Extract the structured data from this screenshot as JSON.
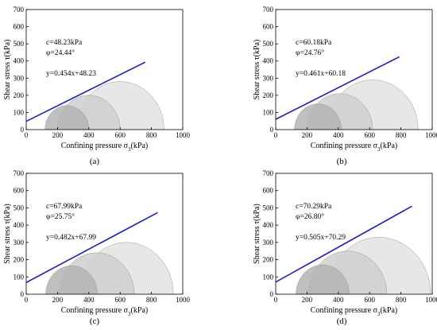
{
  "colors": {
    "envelope_line": "#1a1acc",
    "circle_light_fill": "#e3e3e3",
    "circle_mid_fill": "#cfcfcf",
    "circle_dark_fill": "#b4b4b4",
    "circle_stroke": "#9a9a9a",
    "axis": "#000000"
  },
  "chart_data": [
    {
      "type": "scatter",
      "label": "(a)",
      "xlabel_pre": "Confining pressure σ",
      "xlabel_sub": "3",
      "xlabel_post": "(kPa)",
      "ylabel": "Shear stress τ(kPa)",
      "xlim": [
        0,
        1000
      ],
      "ylim": [
        0,
        700
      ],
      "xticks": [
        0,
        200,
        400,
        600,
        800,
        1000
      ],
      "yticks": [
        0,
        100,
        200,
        300,
        400,
        500,
        600,
        700
      ],
      "mohr_circles": [
        {
          "center": 600,
          "radius": 280
        },
        {
          "center": 400,
          "radius": 200
        },
        {
          "center": 260,
          "radius": 140
        }
      ],
      "fit_line": {
        "slope": 0.454,
        "intercept": 48.23,
        "x": [
          0,
          760
        ]
      },
      "annotations": {
        "cohesion": "c=48.23kPa",
        "friction": "φ=24.44°",
        "equation": "y=0.454x+48.23"
      }
    },
    {
      "type": "scatter",
      "label": "(b)",
      "xlabel_pre": "Confining pressure σ",
      "xlabel_sub": "3",
      "xlabel_post": "(kPa)",
      "ylabel": "Shear stress τ(kPa)",
      "xlim": [
        0,
        1000
      ],
      "ylim": [
        0,
        700
      ],
      "xticks": [
        0,
        200,
        400,
        600,
        800,
        1000
      ],
      "yticks": [
        0,
        100,
        200,
        300,
        400,
        500,
        600,
        700
      ],
      "mohr_circles": [
        {
          "center": 620,
          "radius": 290
        },
        {
          "center": 410,
          "radius": 210
        },
        {
          "center": 270,
          "radius": 150
        }
      ],
      "fit_line": {
        "slope": 0.461,
        "intercept": 60.18,
        "x": [
          0,
          790
        ]
      },
      "annotations": {
        "cohesion": "c=60.18kPa",
        "friction": "φ=24.76°",
        "equation": "y=0.461x+60.18"
      }
    },
    {
      "type": "scatter",
      "label": "(c)",
      "xlabel_pre": "Confining pressure σ",
      "xlabel_sub": "3",
      "xlabel_post": "(kPa)",
      "ylabel": "Shear stress τ(kPa)",
      "xlim": [
        0,
        1000
      ],
      "ylim": [
        0,
        700
      ],
      "xticks": [
        0,
        200,
        400,
        600,
        800,
        1000
      ],
      "yticks": [
        0,
        100,
        200,
        300,
        400,
        500,
        600,
        700
      ],
      "mohr_circles": [
        {
          "center": 640,
          "radius": 300
        },
        {
          "center": 450,
          "radius": 240
        },
        {
          "center": 290,
          "radius": 165
        }
      ],
      "fit_line": {
        "slope": 0.482,
        "intercept": 67.99,
        "x": [
          0,
          840
        ]
      },
      "annotations": {
        "cohesion": "c=67.99kPa",
        "friction": "φ=25.75°",
        "equation": "y=0.482x+67.99"
      }
    },
    {
      "type": "scatter",
      "label": "(d)",
      "xlabel_pre": "Confining pressure σ",
      "xlabel_sub": "3",
      "xlabel_post": "(kPa)",
      "ylabel": "Shear stress τ(kPa)",
      "xlim": [
        0,
        1000
      ],
      "ylim": [
        0,
        700
      ],
      "xticks": [
        0,
        200,
        400,
        600,
        800,
        1000
      ],
      "yticks": [
        0,
        100,
        200,
        300,
        400,
        500,
        600,
        700
      ],
      "mohr_circles": [
        {
          "center": 660,
          "radius": 330
        },
        {
          "center": 460,
          "radius": 250
        },
        {
          "center": 300,
          "radius": 170
        }
      ],
      "fit_line": {
        "slope": 0.505,
        "intercept": 70.29,
        "x": [
          0,
          870
        ]
      },
      "annotations": {
        "cohesion": "c=70.29kPa",
        "friction": "φ=26.80°",
        "equation": "y=0.505x+70.29"
      }
    }
  ]
}
